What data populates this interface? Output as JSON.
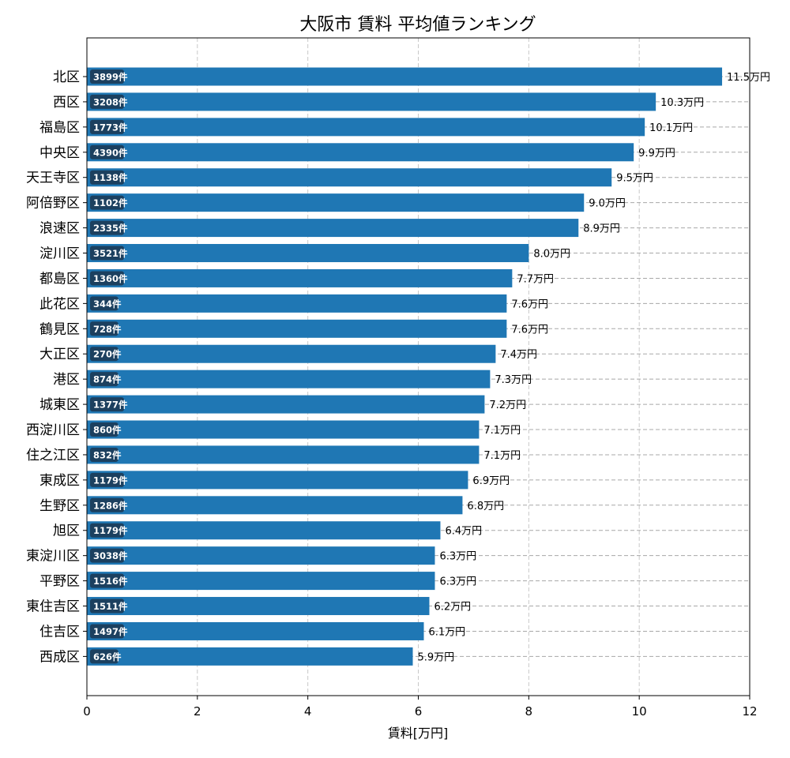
{
  "chart_data": {
    "type": "bar",
    "orientation": "horizontal",
    "title": "大阪市 賃料 平均値ランキング",
    "xlabel": "賃料[万円]",
    "ylabel": "",
    "xlim": [
      0,
      12
    ],
    "xticks": [
      0,
      2,
      4,
      6,
      8,
      10,
      12
    ],
    "grid": true,
    "bar_color": "#1f77b4",
    "count_badge_color": "#1c3a55",
    "value_suffix": "万円",
    "count_suffix": "件",
    "categories": [
      "北区",
      "西区",
      "福島区",
      "中央区",
      "天王寺区",
      "阿倍野区",
      "浪速区",
      "淀川区",
      "都島区",
      "此花区",
      "鶴見区",
      "大正区",
      "港区",
      "城東区",
      "西淀川区",
      "住之江区",
      "東成区",
      "生野区",
      "旭区",
      "東淀川区",
      "平野区",
      "東住吉区",
      "住吉区",
      "西成区"
    ],
    "values": [
      11.5,
      10.3,
      10.1,
      9.9,
      9.5,
      9.0,
      8.9,
      8.0,
      7.7,
      7.6,
      7.6,
      7.4,
      7.3,
      7.2,
      7.1,
      7.1,
      6.9,
      6.8,
      6.4,
      6.3,
      6.3,
      6.2,
      6.1,
      5.9
    ],
    "counts": [
      3899,
      3208,
      1773,
      4390,
      1138,
      1102,
      2335,
      3521,
      1360,
      344,
      728,
      270,
      874,
      1377,
      860,
      832,
      1179,
      1286,
      1179,
      3038,
      1516,
      1511,
      1497,
      626
    ]
  }
}
